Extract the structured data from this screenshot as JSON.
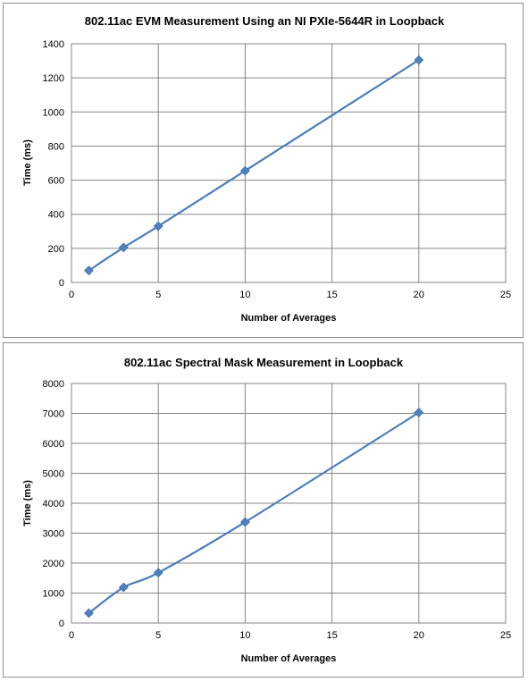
{
  "chart_data": [
    {
      "type": "line",
      "title": "802.11ac EVM Measurement Using an NI PXIe-5644R in Loopback",
      "xlabel": "Number of Averages",
      "ylabel": "Time (ms)",
      "xlim": [
        0,
        25
      ],
      "ylim": [
        0,
        1400
      ],
      "xticks": [
        0,
        5,
        10,
        15,
        20,
        25
      ],
      "yticks": [
        0,
        200,
        400,
        600,
        800,
        1000,
        1200,
        1400
      ],
      "grid": true,
      "legend": "none",
      "series": [
        {
          "x": [
            1,
            3,
            5,
            10,
            20
          ],
          "values": [
            70,
            205,
            330,
            655,
            1305
          ],
          "color": "#4f81bd",
          "marker": "diamond"
        }
      ]
    },
    {
      "type": "line",
      "title": "802.11ac Spectral Mask Measurement in Loopback",
      "xlabel": "Number of Averages",
      "ylabel": "Time (ms)",
      "xlim": [
        0,
        25
      ],
      "ylim": [
        0,
        8000
      ],
      "xticks": [
        0,
        5,
        10,
        15,
        20,
        25
      ],
      "yticks": [
        0,
        1000,
        2000,
        3000,
        4000,
        5000,
        6000,
        7000,
        8000
      ],
      "grid": true,
      "legend": "none",
      "series": [
        {
          "x": [
            1,
            3,
            5,
            10,
            20
          ],
          "values": [
            330,
            1190,
            1680,
            3370,
            7030
          ],
          "color": "#4f81bd",
          "marker": "diamond"
        }
      ]
    }
  ]
}
